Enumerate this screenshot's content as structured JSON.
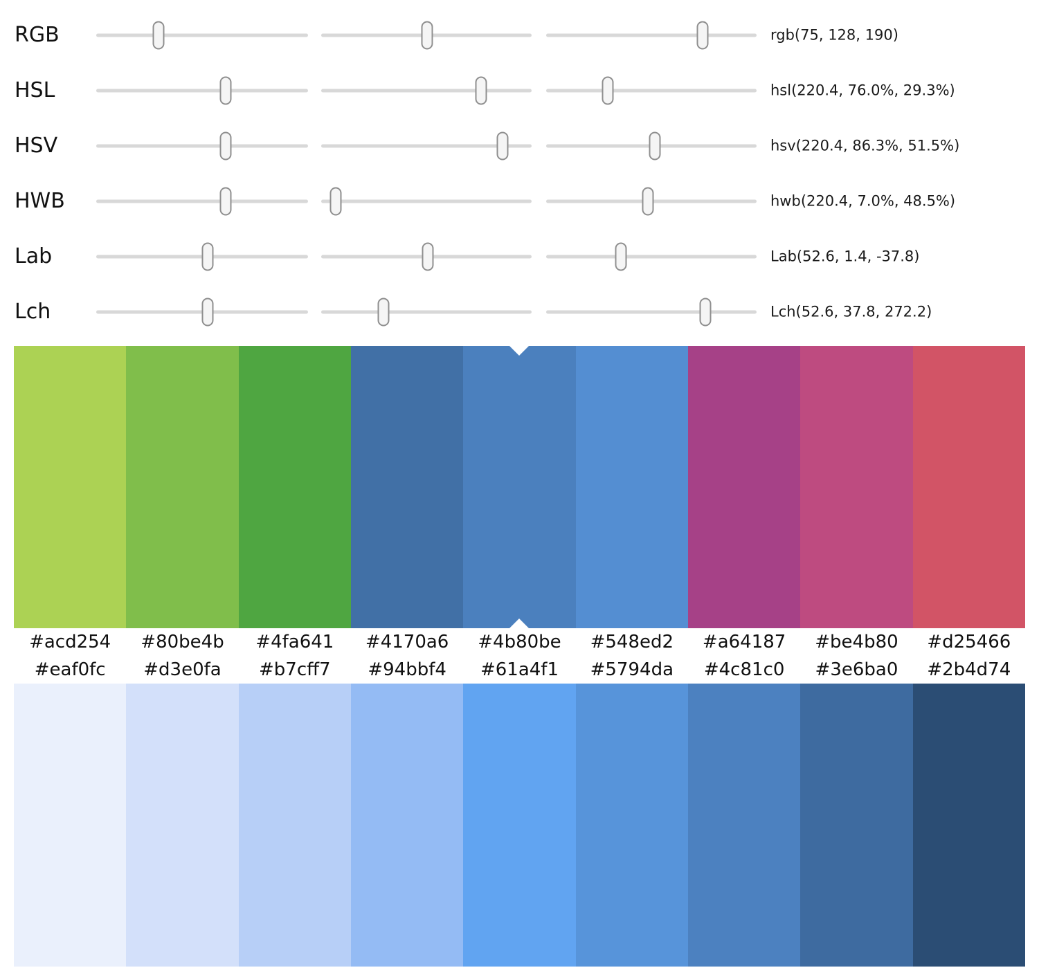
{
  "sliders": {
    "rows": [
      {
        "label": "RGB",
        "value_text": "rgb(75, 128, 190)",
        "positions": [
          0.294,
          0.502,
          0.745
        ]
      },
      {
        "label": "HSL",
        "value_text": "hsl(220.4, 76.0%, 29.3%)",
        "positions": [
          0.612,
          0.76,
          0.293
        ]
      },
      {
        "label": "HSV",
        "value_text": "hsv(220.4, 86.3%, 51.5%)",
        "positions": [
          0.612,
          0.863,
          0.515
        ]
      },
      {
        "label": "HWB",
        "value_text": "hwb(220.4, 7.0%, 48.5%)",
        "positions": [
          0.612,
          0.07,
          0.485
        ]
      },
      {
        "label": "Lab",
        "value_text": "Lab(52.6, 1.4, -37.8)",
        "positions": [
          0.526,
          0.507,
          0.354
        ]
      },
      {
        "label": "Lch",
        "value_text": "Lch(52.6, 37.8, 272.2)",
        "positions": [
          0.526,
          0.295,
          0.756
        ]
      }
    ]
  },
  "palettes": {
    "harmony": {
      "colors": [
        "#acd254",
        "#80be4b",
        "#4fa641",
        "#4170a6",
        "#4b80be",
        "#548ed2",
        "#a64187",
        "#be4b80",
        "#d25466"
      ],
      "selected_index": 4
    },
    "shades": {
      "colors": [
        "#eaf0fc",
        "#d3e0fa",
        "#b7cff7",
        "#94bbf4",
        "#61a4f1",
        "#5794da",
        "#4c81c0",
        "#3e6ba0",
        "#2b4d74"
      ]
    }
  },
  "ui_colors": {
    "background": "#ffffff",
    "track": "#d8d8d8",
    "handle_fill": "#f5f5f5",
    "handle_border": "#8f8f8f",
    "text": "#111111",
    "notch": "#ffffff"
  }
}
